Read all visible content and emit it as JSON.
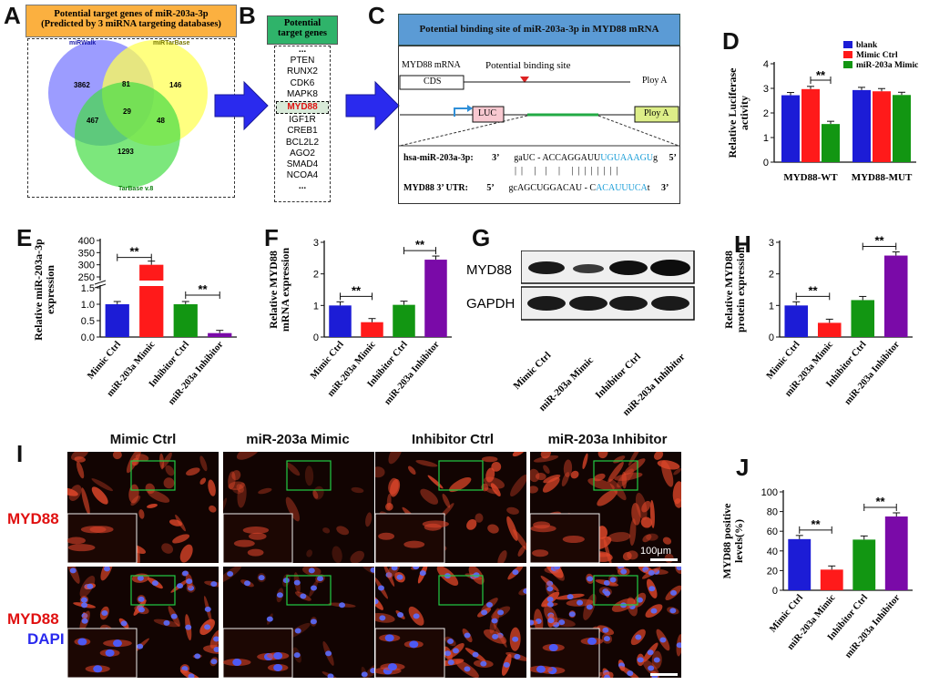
{
  "panels": {
    "A": "A",
    "B": "B",
    "C": "C",
    "D": "D",
    "E": "E",
    "F": "F",
    "G": "G",
    "H": "H",
    "I": "I",
    "J": "J"
  },
  "venn": {
    "title_line1": "Potential target genes of miR-203a-3p",
    "title_line2": "(Predicted by 3 miRNA targeting databases)",
    "sets": [
      "miRWalk",
      "miRTarBase",
      "TarBase v.8"
    ],
    "colors": [
      "#7b7bff",
      "#ffff66",
      "#55dd55"
    ],
    "regions": {
      "only_mirwalk": "3862",
      "mirwalk_mirtarbase": "81",
      "only_mirtarbase": "146",
      "mirwalk_tarbase": "467",
      "all_three": "29",
      "mirtarbase_tarbase": "48",
      "only_tarbase": "1293"
    }
  },
  "genes": {
    "title_line1": "Potential",
    "title_line2": "target genes",
    "top_ellipsis": "...",
    "list_top": [
      "PTEN",
      "RUNX2",
      "CDK6",
      "MAPK8"
    ],
    "highlight": "MYD88",
    "list_bottom": [
      "IGF1R",
      "CREB1",
      "BCL2L2",
      "AGO2",
      "SMAD4",
      "NCOA4"
    ],
    "bottom_ellipsis": "..."
  },
  "binding": {
    "title": "Potential binding site of miR-203a-3p in MYD88 mRNA",
    "mrna_label": "MYD88 mRNA",
    "site_label": "Potential binding site",
    "cds": "CDS",
    "polya_top": "Ploy A",
    "luc": "LUC",
    "polya_bottom": "Ploy A",
    "mir_name": "hsa-miR-203a-3p:",
    "mir_3": "3’",
    "mir_seq_a": "gaUC - ACCAGGAUU",
    "mir_seq_b": "UGUAAAGU",
    "mir_seq_c": "g",
    "mir_5": "5’",
    "pairs": "|  |     |    |     |     |  |  |  |  |  |  |  |",
    "utr_name": "MYD88 3’ UTR:",
    "utr_5": "5’",
    "utr_seq_a": "gcAGCUGGACAU - C",
    "utr_seq_b": "ACAUUUCA",
    "utr_seq_c": "t",
    "utr_3": "3’"
  },
  "western": {
    "labels": [
      "MYD88",
      "GAPDH"
    ],
    "lanes": [
      "Mimic Ctrl",
      "miR-203a Mimic",
      "Inhibitor Ctrl",
      "miR-203a Inhibitor"
    ]
  },
  "micro": {
    "columns": [
      "Mimic Ctrl",
      "miR-203a Mimic",
      "Inhibitor Ctrl",
      "miR-203a Inhibitor"
    ],
    "row1_label": "MYD88",
    "row2_label_a": "MYD88",
    "row2_label_b": "DAPI",
    "scale": "100μm"
  },
  "chart_data": [
    {
      "panel": "D",
      "type": "bar",
      "categories": [
        "MYD88-WT",
        "MYD88-MUT"
      ],
      "series": [
        {
          "name": "blank",
          "values": [
            2.72,
            2.93
          ],
          "color": "#1c1cd6"
        },
        {
          "name": "Mimic Ctrl",
          "values": [
            2.97,
            2.88
          ],
          "color": "#ff1a1a"
        },
        {
          "name": "miR-203a Mimic",
          "values": [
            1.55,
            2.73
          ],
          "color": "#129612"
        }
      ],
      "ylabel": "Relative Luciferase activity",
      "ylim": [
        0,
        4
      ],
      "yticks": [
        "0",
        "1",
        "2",
        "3",
        "4"
      ],
      "significance": "**"
    },
    {
      "panel": "E",
      "type": "bar",
      "categories": [
        "Mimic Ctrl",
        "miR-203a Mimic",
        "Inhibitor Ctrl",
        "miR-203a Inhibitor"
      ],
      "values": [
        1.0,
        300,
        1.0,
        0.12
      ],
      "colors": [
        "#1c1cd6",
        "#ff1a1a",
        "#129612",
        "#7a0aa8"
      ],
      "ylabel": "Relative miR-203a-3p expression",
      "yticks": [
        "0.0",
        "0.5",
        "1.0",
        "1.5",
        "250",
        "300",
        "350",
        "400"
      ],
      "broken_axis": true,
      "significance": "**"
    },
    {
      "panel": "F",
      "type": "bar",
      "categories": [
        "Mimic Ctrl",
        "miR-203a Mimic",
        "Inhibitor Ctrl",
        "miR-203a Inhibitor"
      ],
      "values": [
        1.0,
        0.47,
        1.02,
        2.45
      ],
      "colors": [
        "#1c1cd6",
        "#ff1a1a",
        "#129612",
        "#7a0aa8"
      ],
      "ylabel": "Relative MYD88 mRNA expression",
      "ylim": [
        0,
        3
      ],
      "yticks": [
        "0",
        "1",
        "2",
        "3"
      ],
      "significance": "**"
    },
    {
      "panel": "H",
      "type": "bar",
      "categories": [
        "Mimic Ctrl",
        "miR-203a Mimic",
        "Inhibitor Ctrl",
        "miR-203a Inhibitor"
      ],
      "values": [
        1.0,
        0.45,
        1.17,
        2.58
      ],
      "colors": [
        "#1c1cd6",
        "#ff1a1a",
        "#129612",
        "#7a0aa8"
      ],
      "ylabel": "Relative MYD88 protein expression",
      "ylim": [
        0,
        3
      ],
      "yticks": [
        "0",
        "1",
        "2",
        "3"
      ],
      "significance": "**"
    },
    {
      "panel": "J",
      "type": "bar",
      "categories": [
        "Mimic Ctrl",
        "miR-203a Mimic",
        "Inhibitor Ctrl",
        "miR-203a Inhibitor"
      ],
      "values": [
        52,
        21,
        51.5,
        75
      ],
      "colors": [
        "#1c1cd6",
        "#ff1a1a",
        "#129612",
        "#7a0aa8"
      ],
      "ylabel": "MYD88 positive levels(%)",
      "ylim": [
        0,
        100
      ],
      "yticks": [
        "0",
        "20",
        "40",
        "60",
        "80",
        "100"
      ],
      "significance": "**"
    }
  ]
}
